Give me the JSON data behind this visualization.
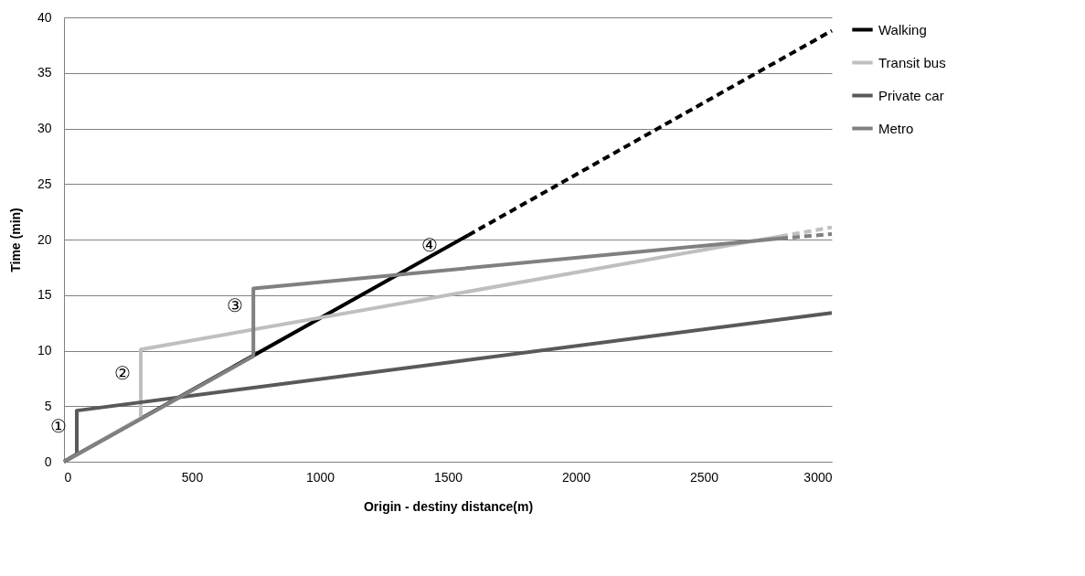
{
  "chart_data": {
    "type": "line",
    "xlabel": "Origin - destiny distance(m)",
    "ylabel": "Time (min)",
    "xlim": [
      0,
      3000
    ],
    "xticks": [
      0,
      500,
      1000,
      1500,
      2000,
      2500,
      3000
    ],
    "ylim": [
      0,
      40
    ],
    "yticks": [
      0,
      5,
      10,
      15,
      20,
      25,
      30,
      35,
      40
    ],
    "grid": "y",
    "legend": "right",
    "line_style": "solid",
    "series": [
      {
        "name": "Walking",
        "color": "#000000",
        "x": [
          0,
          1580
        ],
        "values": [
          0,
          20.4
        ]
      },
      {
        "name": "Transit bus",
        "color": "#bfbfbf",
        "x": [
          0,
          300,
          300,
          2800
        ],
        "values": [
          0,
          3.9,
          10.1,
          20.3
        ]
      },
      {
        "name": "Private car",
        "color": "#595959",
        "x": [
          0,
          50,
          50,
          3000
        ],
        "values": [
          0,
          0.7,
          4.6,
          13.4
        ]
      },
      {
        "name": "Metro",
        "color": "#808080",
        "x": [
          0,
          740,
          740,
          2800
        ],
        "values": [
          0,
          9.5,
          15.6,
          20.1
        ]
      },
      {
        "color": "#000000",
        "line_style": "dashed",
        "x": [
          1580,
          3000
        ],
        "values": [
          20.4,
          38.8
        ]
      },
      {
        "color": "#bfbfbf",
        "line_style": "dashed",
        "x": [
          2800,
          3000
        ],
        "values": [
          20.3,
          21.1
        ]
      },
      {
        "color": "#808080",
        "line_style": "dashed",
        "x": [
          2800,
          3000
        ],
        "values": [
          20.1,
          20.5
        ]
      }
    ],
    "annotations": [
      {
        "text": "①",
        "x": 50,
        "y": 3.1
      },
      {
        "text": "②",
        "x": 300,
        "y": 7.9
      },
      {
        "text": "③",
        "x": 740,
        "y": 14
      },
      {
        "text": "④",
        "x": 1500,
        "y": 19.4
      }
    ]
  }
}
